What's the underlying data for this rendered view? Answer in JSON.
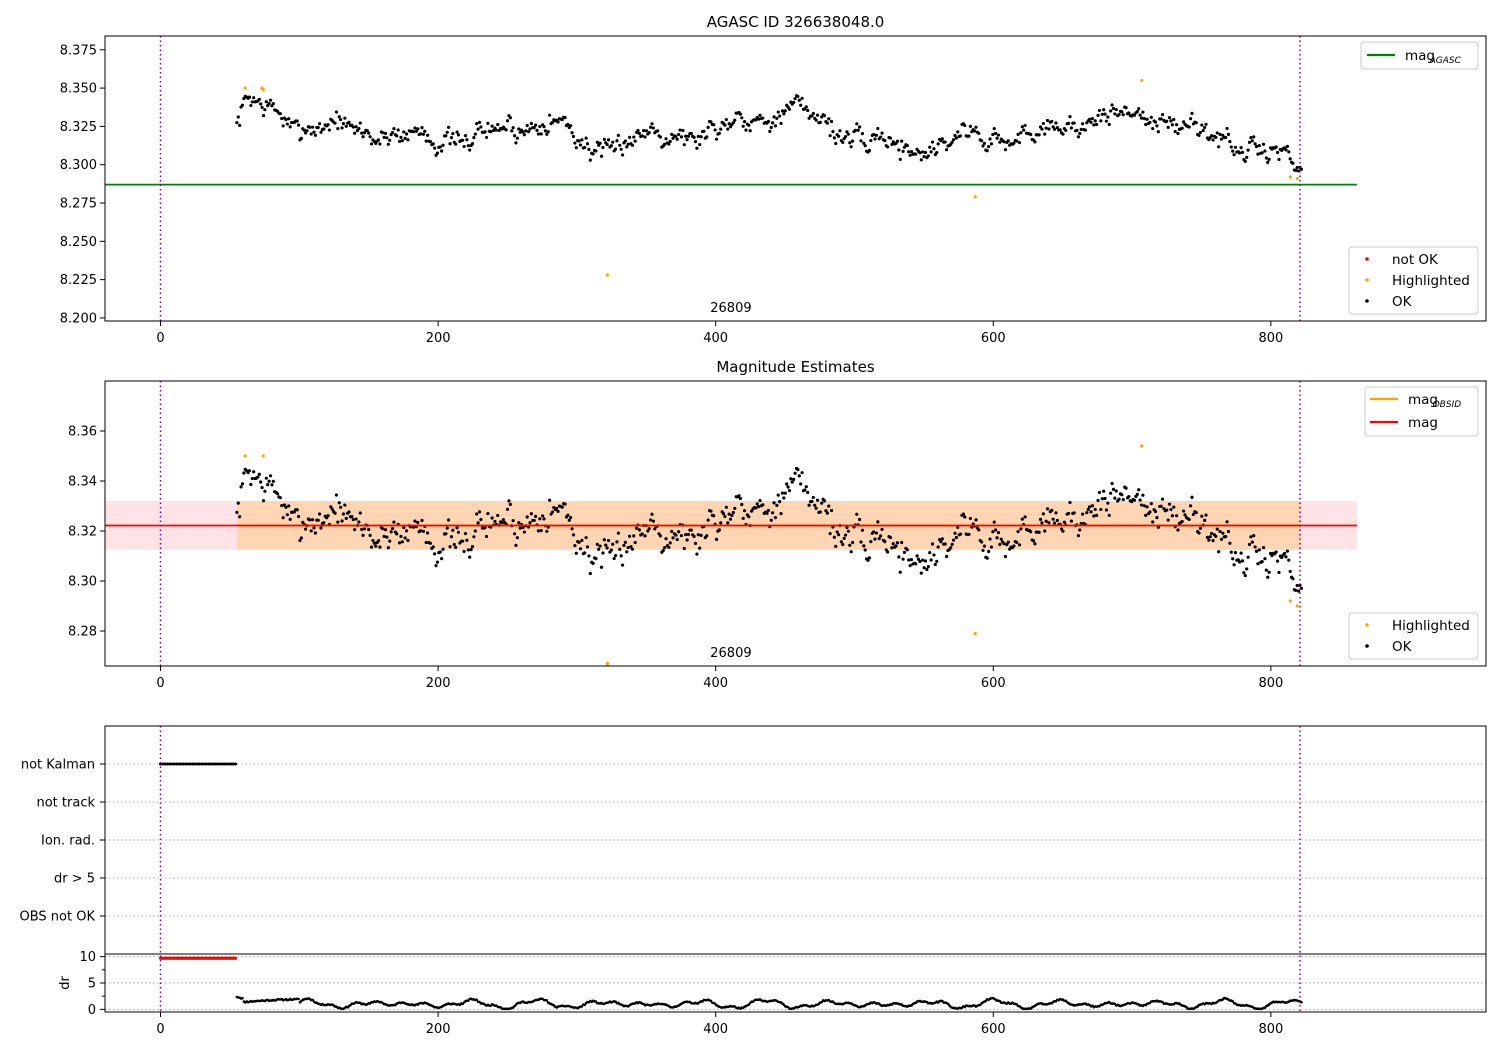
{
  "chart_data": [
    {
      "type": "scatter",
      "title": "AGASC ID 326638048.0",
      "xlim": [
        -40,
        955
      ],
      "ylim": [
        8.198,
        8.384
      ],
      "xticks": [
        0,
        200,
        400,
        600,
        800
      ],
      "yticks": [
        8.2,
        8.225,
        8.25,
        8.275,
        8.3,
        8.325,
        8.35,
        8.375
      ],
      "ytick_labels": [
        "8.200",
        "8.225",
        "8.250",
        "8.275",
        "8.300",
        "8.325",
        "8.350",
        "8.375"
      ],
      "obsid_label": {
        "text": "26809",
        "x": 411
      },
      "vlines": [
        0,
        821
      ],
      "hline": {
        "name": "mag",
        "sub": "AGASC",
        "y": 8.287,
        "x0": -40,
        "x1": 862,
        "color": "#008000"
      },
      "legend_lines": [
        {
          "name": "mag",
          "sub": "AGASC",
          "color": "#008000"
        }
      ],
      "legend_points": [
        {
          "name": "not OK",
          "color": "#ff0000"
        },
        {
          "name": "Highlighted",
          "color": "#ffa500"
        },
        {
          "name": "OK",
          "color": "#000000"
        }
      ],
      "highlighted": [
        [
          61,
          8.35
        ],
        [
          73,
          8.35
        ],
        [
          74,
          8.349
        ],
        [
          322,
          8.228
        ],
        [
          587,
          8.279
        ],
        [
          707,
          8.355
        ],
        [
          814,
          8.292
        ],
        [
          819,
          8.291
        ]
      ],
      "ok_series": {
        "x_start": 55,
        "x_end": 822,
        "n": 760,
        "seed": 7,
        "trend": [
          [
            55,
            8.328
          ],
          [
            62,
            8.34
          ],
          [
            75,
            8.337
          ],
          [
            100,
            8.326
          ],
          [
            150,
            8.322
          ],
          [
            200,
            8.316
          ],
          [
            250,
            8.322
          ],
          [
            280,
            8.332
          ],
          [
            310,
            8.308
          ],
          [
            340,
            8.318
          ],
          [
            400,
            8.322
          ],
          [
            420,
            8.33
          ],
          [
            460,
            8.336
          ],
          [
            500,
            8.318
          ],
          [
            540,
            8.31
          ],
          [
            580,
            8.318
          ],
          [
            620,
            8.318
          ],
          [
            660,
            8.328
          ],
          [
            710,
            8.333
          ],
          [
            740,
            8.324
          ],
          [
            780,
            8.312
          ],
          [
            800,
            8.308
          ],
          [
            815,
            8.302
          ],
          [
            822,
            8.302
          ]
        ],
        "noise": 0.0065
      }
    },
    {
      "type": "scatter",
      "title": "Magnitude Estimates",
      "xlim": [
        -40,
        955
      ],
      "ylim": [
        8.266,
        8.38
      ],
      "xticks": [
        0,
        200,
        400,
        600,
        800
      ],
      "yticks": [
        8.28,
        8.3,
        8.32,
        8.34,
        8.36
      ],
      "ytick_labels": [
        "8.28",
        "8.30",
        "8.32",
        "8.34",
        "8.36"
      ],
      "obsid_label": {
        "text": "26809",
        "x": 411
      },
      "vlines": [
        0,
        821
      ],
      "band_obsid": {
        "y0": 8.3125,
        "y1": 8.332,
        "x0": 55,
        "x1": 822,
        "color": "#ffa500"
      },
      "band_mag": {
        "y0": 8.3125,
        "y1": 8.332,
        "x0": -40,
        "x1": 862,
        "color": "#ffb6c1"
      },
      "line_obsid": {
        "name": "mag",
        "sub": "OBSID",
        "y": 8.3222,
        "x0": 55,
        "x1": 822,
        "color": "#ffa500"
      },
      "line_mag": {
        "name": "mag",
        "y": 8.3222,
        "x0": -40,
        "x1": 862,
        "color": "#ff0000"
      },
      "legend_lines": [
        {
          "name": "mag",
          "sub": "OBSID",
          "color": "#ffa500"
        },
        {
          "name": "mag",
          "color": "#ff0000"
        }
      ],
      "legend_points": [
        {
          "name": "Highlighted",
          "color": "#ffa500"
        },
        {
          "name": "OK",
          "color": "#000000"
        }
      ],
      "highlighted": [
        [
          61,
          8.35
        ],
        [
          74,
          8.35
        ],
        [
          587,
          8.279
        ],
        [
          707,
          8.354
        ],
        [
          814,
          8.292
        ],
        [
          819,
          8.29
        ],
        [
          322,
          8.267
        ],
        [
          322,
          8.266
        ]
      ]
    },
    {
      "type": "scatter",
      "xlim": [
        -40,
        955
      ],
      "flag_labels": [
        "not Kalman",
        "not track",
        "Ion. rad.",
        "dr > 5",
        "OBS not OK"
      ],
      "not_kalman": {
        "x0": 0,
        "x1": 54,
        "n": 34
      },
      "dr_panel": {
        "ylabel": "dr",
        "ylim": [
          -0.5,
          10.5
        ],
        "yticks": [
          0,
          5,
          10
        ],
        "ytick_labels": [
          "0",
          "5",
          "10"
        ],
        "minor_ticks": [
          2.5,
          7.5
        ],
        "red_level": 9.7,
        "red_x0": 0,
        "red_x1": 54
      },
      "xticks": [
        0,
        200,
        400,
        600,
        800
      ],
      "vlines": [
        0,
        821
      ]
    }
  ]
}
